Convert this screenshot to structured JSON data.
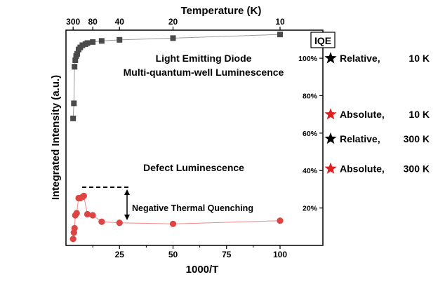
{
  "chart_data": {
    "type": "scatter",
    "xlabel": "1000/T",
    "ylabel": "Integrated Intensity (a.u.)",
    "top_axis_label": "Temperature (K)",
    "xlim": [
      0,
      120
    ],
    "ylim": [
      0,
      1
    ],
    "x_ticks": [
      25,
      50,
      75,
      100
    ],
    "top_ticks": [
      {
        "label": "300",
        "value": 300
      },
      {
        "label": "80",
        "value": 80
      },
      {
        "label": "40",
        "value": 40
      },
      {
        "label": "20",
        "value": 20
      },
      {
        "label": "10",
        "value": 10
      }
    ],
    "right_axis_label": "IQE",
    "right_ticks": [
      {
        "label": "20%",
        "value": 20
      },
      {
        "label": "40%",
        "value": 40
      },
      {
        "label": "60%",
        "value": 60
      },
      {
        "label": "80%",
        "value": 80
      },
      {
        "label": "100%",
        "value": 100
      }
    ],
    "right_ylim": [
      0,
      115
    ],
    "series": [
      {
        "name": "Light Emitting Diode Multi-quantum-well Luminescence",
        "marker": "square",
        "color": "#4a4a4a",
        "x": [
          3.33,
          3.7,
          4.0,
          4.35,
          4.76,
          5.26,
          5.88,
          6.67,
          7.69,
          9.09,
          10.0,
          12.5,
          16.67,
          25.0,
          50.0,
          100.0
        ],
        "y": [
          0.59,
          0.66,
          0.83,
          0.86,
          0.88,
          0.89,
          0.91,
          0.92,
          0.93,
          0.935,
          0.94,
          0.945,
          0.95,
          0.955,
          0.963,
          0.98
        ]
      },
      {
        "name": "Defect Luminescence",
        "marker": "circle",
        "color": "#dd4444",
        "x": [
          3.33,
          3.7,
          4.0,
          4.35,
          5.0,
          5.88,
          6.67,
          7.69,
          8.33,
          10.0,
          12.5,
          16.67,
          25.0,
          50.0,
          100.0
        ],
        "y": [
          0.03,
          0.06,
          0.08,
          0.14,
          0.15,
          0.22,
          0.22,
          0.225,
          0.23,
          0.145,
          0.14,
          0.11,
          0.105,
          0.1,
          0.115
        ]
      }
    ],
    "annotations": [
      {
        "text": "Light Emitting Diode",
        "near": "upper"
      },
      {
        "text": "Multi-quantum-well Luminescence",
        "near": "upper"
      },
      {
        "text": "Defect Luminescence",
        "near": "middle"
      },
      {
        "text": "Negative Thermal Quenching",
        "near": "lower"
      }
    ],
    "iqe_markers": [
      {
        "label": "Relative,",
        "temp": "10 K",
        "value": 100,
        "color": "#000000"
      },
      {
        "label": "Absolute,",
        "temp": "10 K",
        "value": 70,
        "color": "#e02020"
      },
      {
        "label": "Relative,",
        "temp": "300 K",
        "value": 57,
        "color": "#000000"
      },
      {
        "label": "Absolute,",
        "temp": "300 K",
        "value": 41,
        "color": "#e02020"
      }
    ]
  }
}
